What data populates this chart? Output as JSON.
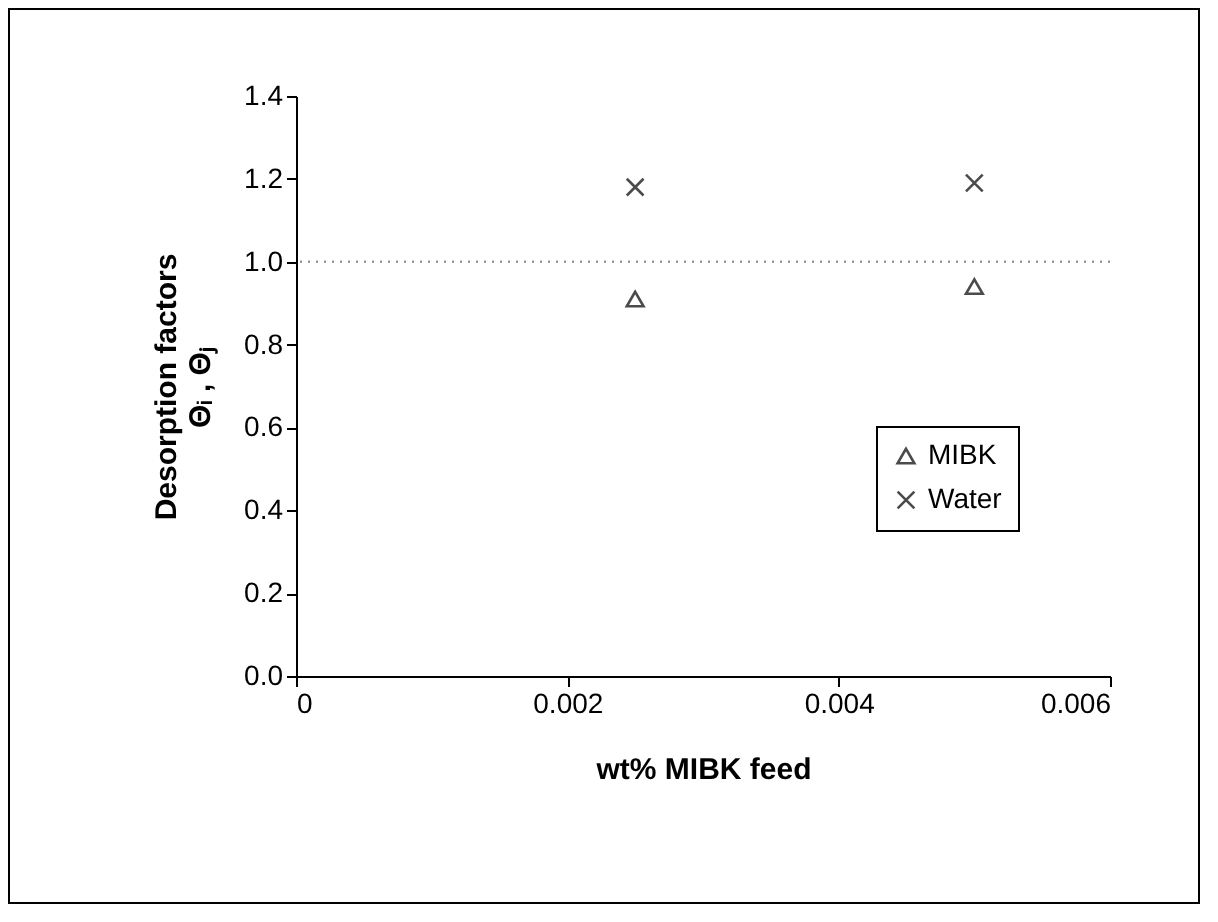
{
  "chart_data": {
    "type": "scatter",
    "xlabel": "wt% MIBK feed",
    "ylabel": [
      "Desorption factors",
      "Θᵢ , Θⱼ"
    ],
    "x": [
      0.0025,
      0.005
    ],
    "series": [
      {
        "name": "MIBK",
        "color": "#000000",
        "marker": "triangle",
        "values": [
          0.91,
          0.94
        ]
      },
      {
        "name": "Water",
        "color": "#000000",
        "marker": "cross",
        "values": [
          1.18,
          1.19
        ]
      }
    ],
    "xlim": [
      0,
      0.006
    ],
    "xticks": [
      0,
      0.002,
      0.004,
      0.006
    ],
    "ylim": [
      0,
      1.4
    ],
    "yticks": [
      {
        "value": 0,
        "label": "0.0"
      },
      {
        "value": 0.2,
        "label": "0.2"
      },
      {
        "value": 0.4,
        "label": "0.4"
      },
      {
        "value": 0.6,
        "label": "0.6"
      },
      {
        "value": 0.8,
        "label": "0.8"
      },
      {
        "value": 1,
        "label": "1.0"
      },
      {
        "value": 1.2,
        "label": "1.2"
      },
      {
        "value": 1.4,
        "label": "1.4"
      }
    ],
    "ref_lines": [
      {
        "axis": "y",
        "value": 1,
        "color": "#999999",
        "line_style": "dotted"
      }
    ],
    "grid": false,
    "legend": "right"
  }
}
